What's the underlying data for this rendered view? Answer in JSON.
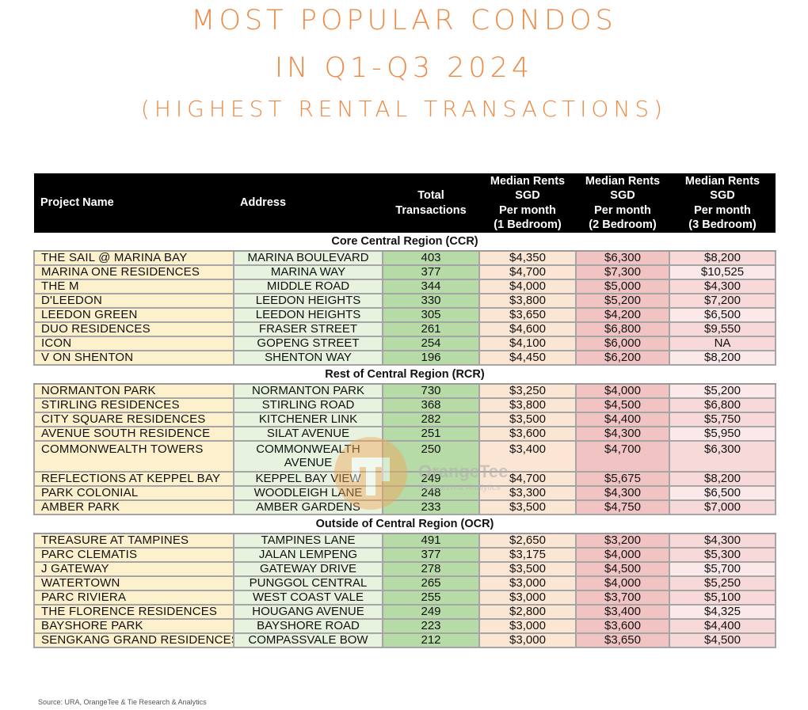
{
  "title": {
    "line1": "MOST POPULAR CONDOS",
    "line2": "IN Q1-Q3 2024",
    "line3": "(HIGHEST RENTAL TRANSACTIONS)"
  },
  "table": {
    "headers": {
      "project": "Project Name",
      "address": "Address",
      "total": [
        "Total",
        "Transactions"
      ],
      "b1": [
        "Median Rents",
        "SGD",
        "Per month",
        "(1 Bedroom)"
      ],
      "b2": [
        "Median Rents",
        "SGD",
        "Per month",
        "(2 Bedroom)"
      ],
      "b3": [
        "Median Rents",
        "SGD",
        "Per month",
        "(3 Bedroom)"
      ]
    },
    "sections": [
      {
        "label": "Core Central Region (CCR)",
        "rows": [
          [
            "THE SAIL @ MARINA BAY",
            "MARINA BOULEVARD",
            "403",
            "$4,350",
            "$6,300",
            "$8,200"
          ],
          [
            "MARINA ONE RESIDENCES",
            "MARINA WAY",
            "377",
            "$4,700",
            "$7,300",
            "$10,525"
          ],
          [
            "THE M",
            "MIDDLE ROAD",
            "344",
            "$4,000",
            "$5,000",
            "$4,300"
          ],
          [
            "D'LEEDON",
            "LEEDON HEIGHTS",
            "330",
            "$3,800",
            "$5,200",
            "$7,200"
          ],
          [
            "LEEDON GREEN",
            "LEEDON HEIGHTS",
            "305",
            "$3,650",
            "$4,200",
            "$6,500"
          ],
          [
            "DUO RESIDENCES",
            "FRASER STREET",
            "261",
            "$4,600",
            "$6,800",
            "$9,550"
          ],
          [
            "ICON",
            "GOPENG STREET",
            "254",
            "$4,100",
            "$6,000",
            "NA"
          ],
          [
            "V ON SHENTON",
            "SHENTON WAY",
            "196",
            "$4,450",
            "$6,200",
            "$8,200"
          ]
        ]
      },
      {
        "label": "Rest of Central Region (RCR)",
        "rows": [
          [
            "NORMANTON PARK",
            "NORMANTON PARK",
            "730",
            "$3,250",
            "$4,000",
            "$5,200"
          ],
          [
            "STIRLING RESIDENCES",
            "STIRLING ROAD",
            "368",
            "$3,800",
            "$4,500",
            "$6,800"
          ],
          [
            "CITY SQUARE RESIDENCES",
            "KITCHENER LINK",
            "282",
            "$3,500",
            "$4,400",
            "$5,750"
          ],
          [
            "AVENUE SOUTH RESIDENCE",
            "SILAT AVENUE",
            "251",
            "$3,600",
            "$4,300",
            "$5,950"
          ],
          [
            "COMMONWEALTH TOWERS",
            "COMMONWEALTH AVENUE",
            "250",
            "$3,400",
            "$4,700",
            "$6,300"
          ],
          [
            "REFLECTIONS AT KEPPEL BAY",
            "KEPPEL BAY VIEW",
            "249",
            "$4,700",
            "$5,675",
            "$8,200"
          ],
          [
            "PARK COLONIAL",
            "WOODLEIGH LANE",
            "248",
            "$3,300",
            "$4,300",
            "$6,500"
          ],
          [
            "AMBER PARK",
            "AMBER GARDENS",
            "233",
            "$3,500",
            "$4,750",
            "$7,000"
          ]
        ]
      },
      {
        "label": "Outside of Central Region (OCR)",
        "rows": [
          [
            "TREASURE AT TAMPINES",
            "TAMPINES LANE",
            "491",
            "$2,650",
            "$3,200",
            "$4,300"
          ],
          [
            "PARC CLEMATIS",
            "JALAN LEMPENG",
            "377",
            "$3,175",
            "$4,000",
            "$5,300"
          ],
          [
            "J GATEWAY",
            "GATEWAY DRIVE",
            "278",
            "$3,500",
            "$4,500",
            "$5,700"
          ],
          [
            "WATERTOWN",
            "PUNGGOL CENTRAL",
            "265",
            "$3,000",
            "$4,000",
            "$5,250"
          ],
          [
            "PARC RIVIERA",
            "WEST COAST VALE",
            "255",
            "$3,000",
            "$3,700",
            "$5,100"
          ],
          [
            "THE FLORENCE RESIDENCES",
            "HOUGANG AVENUE",
            "249",
            "$2,800",
            "$3,400",
            "$4,325"
          ],
          [
            "BAYSHORE PARK",
            "BAYSHORE ROAD",
            "223",
            "$3,000",
            "$3,600",
            "$4,400"
          ],
          [
            "SENGKANG GRAND RESIDENCES",
            "COMPASSVALE BOW",
            "212",
            "$3,000",
            "$3,650",
            "$4,500"
          ]
        ]
      }
    ]
  },
  "source": "Source: URA, OrangeTee & Tie Research & Analytics",
  "watermark": {
    "name": "OrangeTee",
    "sub": "Research & Analytics"
  }
}
